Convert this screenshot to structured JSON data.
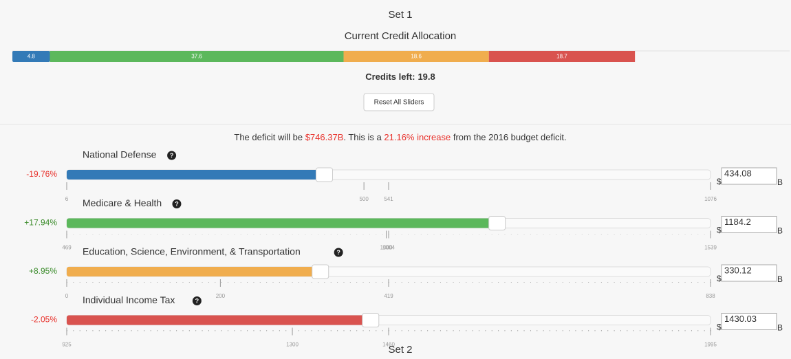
{
  "title": "Set 1",
  "allocation": {
    "title": "Current Credit Allocation",
    "segments": [
      {
        "value": 4.8,
        "color": "#337ab7"
      },
      {
        "value": 37.6,
        "color": "#5cb85c"
      },
      {
        "value": 18.6,
        "color": "#f0ad4e"
      },
      {
        "value": 18.7,
        "color": "#d9534f"
      }
    ],
    "credits_left_label": "Credits left:",
    "credits_left": 19.8
  },
  "reset_button": "Reset All Sliders",
  "deficit": {
    "prefix": "The deficit will be ",
    "amount": "$746.37B",
    "middle": ". This is a ",
    "change": "21.16% increase",
    "suffix": " from the 2016 budget deficit."
  },
  "input_prefix": "$",
  "input_suffix": "B",
  "sliders": [
    {
      "name": "National Defense",
      "change": "-19.76%",
      "change_color": "#e8312b",
      "color": "#337ab7",
      "value": 434.08,
      "range": [
        6,
        1076
      ],
      "ticks": [
        6,
        500,
        541,
        1076
      ]
    },
    {
      "name": "Medicare & Health",
      "change": "+17.94%",
      "change_color": "#3c8c2c",
      "color": "#5cb85c",
      "value": 1184.2,
      "range": [
        469,
        1539
      ],
      "ticks": [
        469,
        1000,
        1004,
        1539
      ]
    },
    {
      "name": "Education, Science, Environment, & Transportation",
      "change": "+8.95%",
      "change_color": "#3c8c2c",
      "color": "#f0ad4e",
      "value": 330.12,
      "range": [
        0,
        838
      ],
      "ticks": [
        0,
        200,
        419,
        838
      ]
    },
    {
      "name": "Individual Income Tax",
      "change": "-2.05%",
      "change_color": "#e8312b",
      "color": "#d9534f",
      "value": 1430.03,
      "range": [
        925,
        1995
      ],
      "ticks": [
        925,
        1300,
        1460,
        1995
      ]
    }
  ],
  "next_title": "Set 2"
}
